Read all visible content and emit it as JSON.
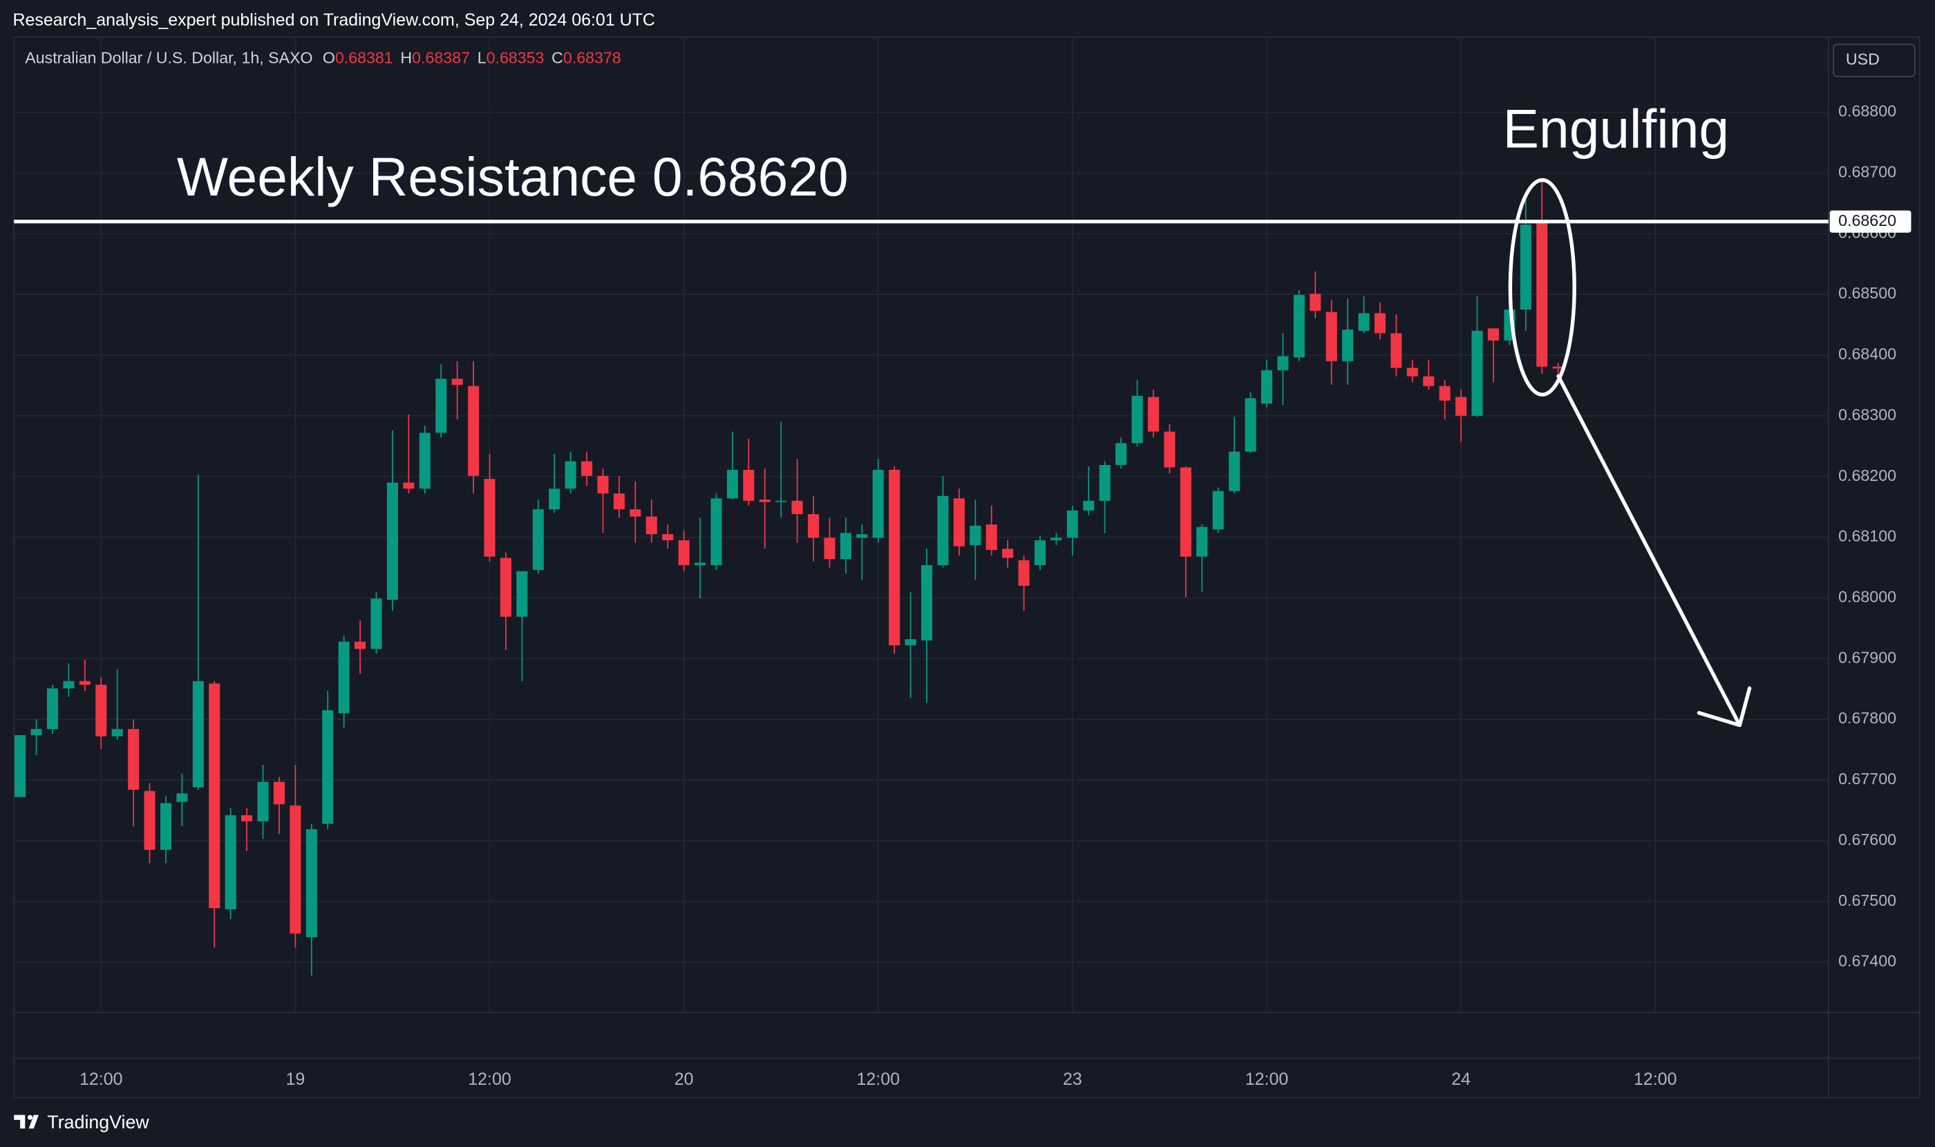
{
  "header": {
    "publisher": "Research_analysis_expert published on TradingView.com, Sep 24, 2024 06:01 UTC",
    "brand": "TradingView"
  },
  "chart_data": {
    "type": "candlestick",
    "title": "Australian Dollar / U.S. Dollar, 1h, SAXO",
    "ohlc_labels": [
      "O",
      "H",
      "L",
      "C"
    ],
    "currency": "USD",
    "up_color": "#089981",
    "down_color": "#f23645",
    "grid": true,
    "open": [
      0.67672,
      0.67774,
      0.67784,
      0.67851,
      0.67863,
      0.67857,
      0.67772,
      0.67784,
      0.67682,
      0.67585,
      0.67664,
      0.67688,
      0.67859,
      0.67487,
      0.67642,
      0.67632,
      0.67697,
      0.67658,
      0.67441,
      0.67628,
      0.6781,
      0.67928,
      0.67916,
      0.67997,
      0.6819,
      0.6818,
      0.68272,
      0.68361,
      0.68349,
      0.68196,
      0.68066,
      0.67969,
      0.68046,
      0.68146,
      0.6818,
      0.68225,
      0.68201,
      0.68172,
      0.68146,
      0.68134,
      0.68105,
      0.68095,
      0.68054,
      0.68054,
      0.68164,
      0.68211,
      0.68162,
      0.68158,
      0.6816,
      0.68138,
      0.68099,
      0.68064,
      0.68099,
      0.68099,
      0.68211,
      0.67922,
      0.6793,
      0.68054,
      0.68164,
      0.68087,
      0.68121,
      0.68081,
      0.68062,
      0.68054,
      0.68095,
      0.68099,
      0.68144,
      0.6816,
      0.68219,
      0.68255,
      0.68331,
      0.68274,
      0.68215,
      0.68068,
      0.68113,
      0.68176,
      0.68241,
      0.6832,
      0.68375,
      0.68396,
      0.68501,
      0.68471,
      0.6839,
      0.6844,
      0.68469,
      0.68436,
      0.68379,
      0.68365,
      0.68349,
      0.68331,
      0.683,
      0.68444,
      0.68424,
      0.68475,
      0.68619,
      0.68381
    ],
    "high": [
      0.67774,
      0.678,
      0.67857,
      0.67892,
      0.67898,
      0.67869,
      0.67882,
      0.678,
      0.67695,
      0.67674,
      0.67711,
      0.68203,
      0.67863,
      0.67654,
      0.67654,
      0.67725,
      0.67705,
      0.67725,
      0.67628,
      0.67847,
      0.67938,
      0.67963,
      0.6801,
      0.68276,
      0.68302,
      0.68284,
      0.68385,
      0.6839,
      0.6839,
      0.68237,
      0.68075,
      0.68044,
      0.68162,
      0.68237,
      0.68241,
      0.68241,
      0.68213,
      0.68201,
      0.68192,
      0.68162,
      0.68121,
      0.68111,
      0.68132,
      0.68172,
      0.68274,
      0.68262,
      0.68213,
      0.6829,
      0.68229,
      0.68168,
      0.68132,
      0.68132,
      0.68121,
      0.68229,
      0.68217,
      0.6801,
      0.68081,
      0.68201,
      0.6818,
      0.68162,
      0.68152,
      0.68095,
      0.6807,
      0.68103,
      0.68107,
      0.68152,
      0.68217,
      0.68225,
      0.68264,
      0.68359,
      0.68343,
      0.68286,
      0.68217,
      0.68121,
      0.68182,
      0.68298,
      0.68339,
      0.68392,
      0.68436,
      0.68507,
      0.68538,
      0.68491,
      0.68493,
      0.68497,
      0.68487,
      0.68467,
      0.68392,
      0.68392,
      0.68359,
      0.68343,
      0.68497,
      0.68444,
      0.68477,
      0.68656,
      0.6869,
      0.68387
    ],
    "low": [
      0.67672,
      0.67741,
      0.67776,
      0.67837,
      0.67847,
      0.67751,
      0.67766,
      0.67624,
      0.67563,
      0.67563,
      0.67624,
      0.67684,
      0.67424,
      0.67471,
      0.67583,
      0.67603,
      0.67611,
      0.67424,
      0.67378,
      0.67619,
      0.67786,
      0.67875,
      0.67908,
      0.67979,
      0.68172,
      0.68172,
      0.68264,
      0.68294,
      0.68172,
      0.6806,
      0.67914,
      0.67863,
      0.6804,
      0.6814,
      0.68172,
      0.68184,
      0.68107,
      0.68132,
      0.68091,
      0.68091,
      0.68081,
      0.68044,
      0.67999,
      0.68046,
      0.68162,
      0.68152,
      0.68081,
      0.68132,
      0.68091,
      0.6806,
      0.6805,
      0.6804,
      0.6803,
      0.68091,
      0.67908,
      0.67835,
      0.67827,
      0.6805,
      0.6807,
      0.6803,
      0.6807,
      0.6805,
      0.67979,
      0.68046,
      0.68087,
      0.6807,
      0.68136,
      0.68107,
      0.68213,
      0.68249,
      0.68264,
      0.68205,
      0.68001,
      0.6801,
      0.68107,
      0.68172,
      0.68239,
      0.68314,
      0.68318,
      0.6839,
      0.68461,
      0.68351,
      0.68351,
      0.68436,
      0.68426,
      0.68365,
      0.68355,
      0.68343,
      0.68294,
      0.68257,
      0.68298,
      0.68355,
      0.68416,
      0.6844,
      0.68369,
      0.68353
    ],
    "close": [
      0.67774,
      0.67784,
      0.67851,
      0.67863,
      0.67857,
      0.67772,
      0.67784,
      0.67684,
      0.67585,
      0.67662,
      0.67678,
      0.67863,
      0.67489,
      0.67642,
      0.67632,
      0.67697,
      0.6766,
      0.67447,
      0.67619,
      0.67815,
      0.67928,
      0.67916,
      0.67999,
      0.6819,
      0.6818,
      0.68272,
      0.68361,
      0.68351,
      0.68201,
      0.68068,
      0.67969,
      0.68044,
      0.68146,
      0.6818,
      0.68225,
      0.68201,
      0.68172,
      0.68146,
      0.68134,
      0.68105,
      0.68095,
      0.68054,
      0.68058,
      0.68164,
      0.68211,
      0.6816,
      0.68158,
      0.6816,
      0.68138,
      0.68099,
      0.68064,
      0.68107,
      0.68105,
      0.68211,
      0.67922,
      0.67932,
      0.68054,
      0.68168,
      0.68085,
      0.68119,
      0.68079,
      0.68066,
      0.6802,
      0.68095,
      0.68099,
      0.68144,
      0.6816,
      0.68219,
      0.68255,
      0.68333,
      0.68274,
      0.68215,
      0.68068,
      0.68117,
      0.68176,
      0.68241,
      0.68329,
      0.68375,
      0.68398,
      0.68499,
      0.68473,
      0.6839,
      0.68442,
      0.68469,
      0.68436,
      0.68379,
      0.68365,
      0.68349,
      0.68325,
      0.683,
      0.6844,
      0.68424,
      0.68475,
      0.68615,
      0.68381,
      0.68378
    ],
    "xlim": [
      -0.38,
      111.7
    ],
    "xticks": [
      {
        "value": 5,
        "label": "12:00"
      },
      {
        "value": 17,
        "label": "19"
      },
      {
        "value": 29,
        "label": "12:00"
      },
      {
        "value": 41,
        "label": "20"
      },
      {
        "value": 53,
        "label": "12:00"
      },
      {
        "value": 65,
        "label": "23"
      },
      {
        "value": 77,
        "label": "12:00"
      },
      {
        "value": 89,
        "label": "24"
      },
      {
        "value": 101,
        "label": "12:00"
      }
    ],
    "ylim": [
      0.67319,
      0.68924
    ],
    "yticks": [
      {
        "value": 0.674,
        "label": "0.67400"
      },
      {
        "value": 0.675,
        "label": "0.67500"
      },
      {
        "value": 0.676,
        "label": "0.67600"
      },
      {
        "value": 0.677,
        "label": "0.67700"
      },
      {
        "value": 0.678,
        "label": "0.67800"
      },
      {
        "value": 0.679,
        "label": "0.67900"
      },
      {
        "value": 0.68,
        "label": "0.68000"
      },
      {
        "value": 0.681,
        "label": "0.68100"
      },
      {
        "value": 0.682,
        "label": "0.68200"
      },
      {
        "value": 0.683,
        "label": "0.68300"
      },
      {
        "value": 0.684,
        "label": "0.68400"
      },
      {
        "value": 0.685,
        "label": "0.68500"
      },
      {
        "value": 0.686,
        "label": "0.68600"
      },
      {
        "value": 0.687,
        "label": "0.68700"
      },
      {
        "value": 0.688,
        "label": "0.68800"
      }
    ],
    "resistance": {
      "value": 0.6862,
      "label": "0.68620",
      "color": "#ffffff"
    },
    "annotations": [
      "Weekly Resistance 0.68620",
      "Engulfing"
    ]
  }
}
